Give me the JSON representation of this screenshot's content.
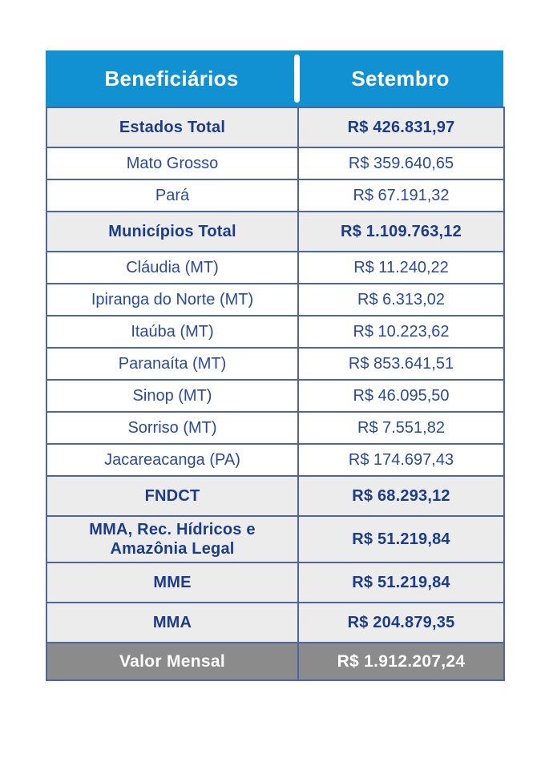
{
  "table": {
    "header": {
      "col1": "Beneficiários",
      "col2": "Setembro"
    },
    "rows": [
      {
        "label": "Estados Total",
        "value": "R$ 426.831,97",
        "style": "subtotal"
      },
      {
        "label": "Mato Grosso",
        "value": "R$ 359.640,65",
        "style": "normal"
      },
      {
        "label": "Pará",
        "value": "R$ 67.191,32",
        "style": "normal"
      },
      {
        "label": "Municípios Total",
        "value": "R$ 1.109.763,12",
        "style": "subtotal"
      },
      {
        "label": "Cláudia (MT)",
        "value": "R$ 11.240,22",
        "style": "normal"
      },
      {
        "label": "Ipiranga do Norte (MT)",
        "value": "R$ 6.313,02",
        "style": "normal"
      },
      {
        "label": "Itaúba (MT)",
        "value": "R$ 10.223,62",
        "style": "normal"
      },
      {
        "label": "Paranaíta (MT)",
        "value": "R$ 853.641,51",
        "style": "normal"
      },
      {
        "label": "Sinop (MT)",
        "value": "R$ 46.095,50",
        "style": "normal"
      },
      {
        "label": "Sorriso (MT)",
        "value": "R$ 7.551,82",
        "style": "normal"
      },
      {
        "label": "Jacareacanga (PA)",
        "value": "R$ 174.697,43",
        "style": "normal"
      },
      {
        "label": "FNDCT",
        "value": "R$ 68.293,12",
        "style": "subtotal"
      },
      {
        "label": "MMA, Rec. Hídricos e Amazônia Legal",
        "value": "R$ 51.219,84",
        "style": "subtotal"
      },
      {
        "label": "MME",
        "value": "R$ 51.219,84",
        "style": "subtotal"
      },
      {
        "label": "MMA",
        "value": "R$ 204.879,35",
        "style": "subtotal"
      },
      {
        "label": "Valor Mensal",
        "value": "R$ 1.912.207,24",
        "style": "footer"
      }
    ]
  },
  "colors": {
    "header_bg": "#1191D1",
    "border": "#4F64A3",
    "subtotal_bg": "#ECECEC",
    "footer_bg": "#8B8B8B",
    "text_bold": "#1B3C8C",
    "text_normal": "#2B4A9B",
    "text_light": "#FFFFFF"
  },
  "chart_data": {
    "type": "table",
    "title": "",
    "columns": [
      "Beneficiários",
      "Setembro"
    ],
    "unit": "R$",
    "rows": [
      [
        "Estados Total",
        "R$ 426.831,97"
      ],
      [
        "Mato Grosso",
        "R$ 359.640,65"
      ],
      [
        "Pará",
        "R$ 67.191,32"
      ],
      [
        "Municípios Total",
        "R$ 1.109.763,12"
      ],
      [
        "Cláudia (MT)",
        "R$ 11.240,22"
      ],
      [
        "Ipiranga do Norte (MT)",
        "R$ 6.313,02"
      ],
      [
        "Itaúba (MT)",
        "R$ 10.223,62"
      ],
      [
        "Paranaíta (MT)",
        "R$ 853.641,51"
      ],
      [
        "Sinop (MT)",
        "R$ 46.095,50"
      ],
      [
        "Sorriso (MT)",
        "R$ 7.551,82"
      ],
      [
        "Jacareacanga (PA)",
        "R$ 174.697,43"
      ],
      [
        "FNDCT",
        "R$ 68.293,12"
      ],
      [
        "MMA, Rec. Hídricos e Amazônia Legal",
        "R$ 51.219,84"
      ],
      [
        "MME",
        "R$ 51.219,84"
      ],
      [
        "MMA",
        "R$ 204.879,35"
      ],
      [
        "Valor Mensal",
        "R$ 1.912.207,24"
      ]
    ],
    "values_numeric": [
      426831.97,
      359640.65,
      67191.32,
      1109763.12,
      11240.22,
      6313.02,
      10223.62,
      853641.51,
      46095.5,
      7551.82,
      174697.43,
      68293.12,
      51219.84,
      51219.84,
      204879.35,
      1912207.24
    ],
    "row_styles": [
      "subtotal",
      "normal",
      "normal",
      "subtotal",
      "normal",
      "normal",
      "normal",
      "normal",
      "normal",
      "normal",
      "normal",
      "subtotal",
      "subtotal",
      "subtotal",
      "subtotal",
      "footer"
    ]
  }
}
